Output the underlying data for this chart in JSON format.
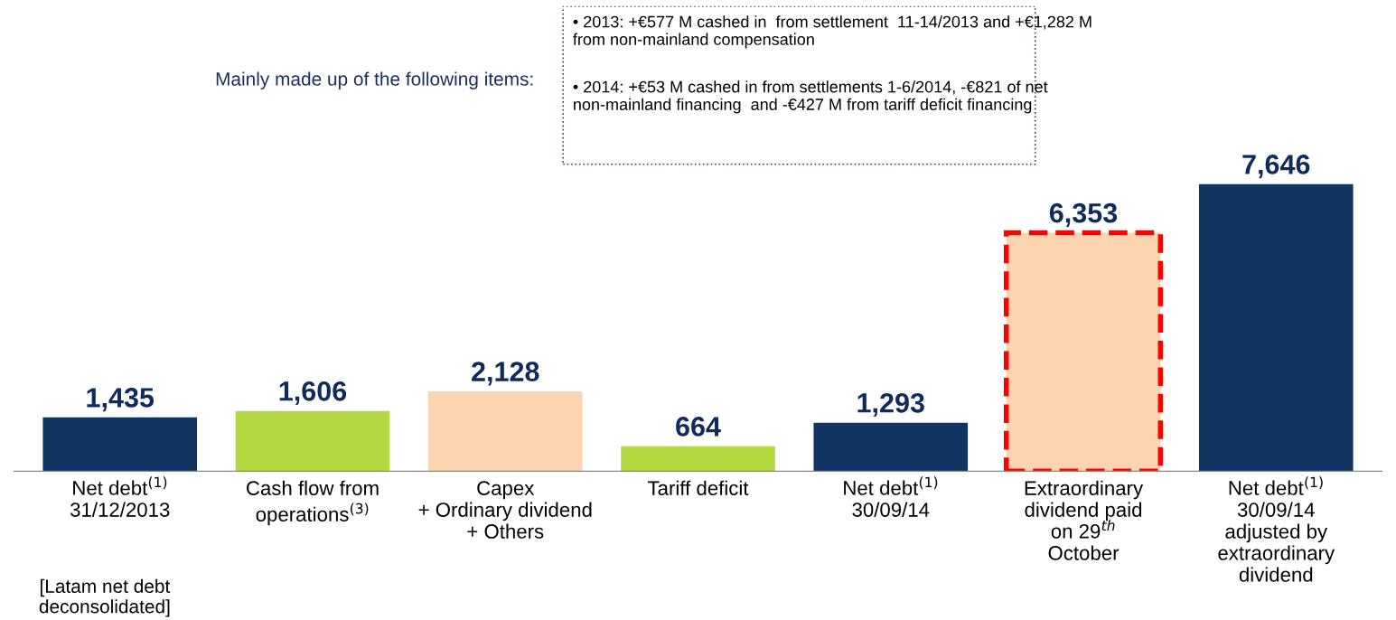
{
  "chart_data": {
    "type": "bar",
    "categories": [
      "Net debt$^{(1)}$\n31/12/2013",
      "Cash flow from\noperations$^{(3)}$",
      "Capex\n+ Ordinary dividend\n+ Others",
      "Tariff deficit",
      "Net debt$^{(1)}$\n30/09/14",
      "Extraordinary\ndividend paid\non 29$^{th}$\nOctober",
      "Net debt$^{(1)}$\n30/09/14\nadjusted by\nextraordinary\ndividend"
    ],
    "series": [
      {
        "color": "#0f3560",
        "colors": [
          "#0f3560",
          "#b2d940",
          "#fcd5b0",
          "#b2d940",
          "#0f3560",
          null,
          "#0f3560"
        ],
        "values": [
          1435,
          1606,
          2128,
          664,
          1293,
          null,
          7646
        ],
        "value_labels": [
          "1,435",
          "1,606",
          "2,128",
          "664",
          "1,293",
          null,
          "7,646"
        ]
      },
      {
        "color": "#fcd5b0",
        "line_style": "dashed",
        "values": [
          null,
          null,
          null,
          null,
          null,
          6353,
          null
        ],
        "value_labels": [
          null,
          null,
          null,
          null,
          null,
          "6,353",
          null
        ]
      }
    ],
    "tick_labels": "x",
    "annotations": [
      "• 2013: +€577 M cashed in  from settlement  11-14/2013 and +€1,282 M from non-mainland compensation",
      "• 2014: +€53 M cashed in from settlements 1-6/2014, -€821 of net non-mainland financing  and -€427 M from tariff deficit financing",
      "Mainly made up of the following items:",
      "[Latam net debt deconsolidated]"
    ]
  }
}
